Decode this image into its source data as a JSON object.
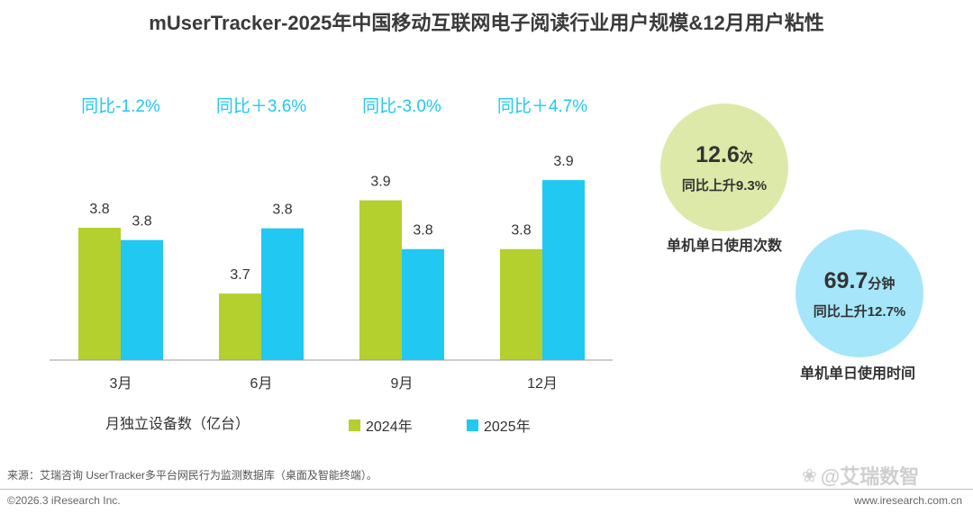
{
  "title": "mUserTracker-2025年中国移动互联网电子阅读行业用户规模&12月用户粘性",
  "chart_data": {
    "type": "bar",
    "categories": [
      "3月",
      "6月",
      "9月",
      "12月"
    ],
    "series": [
      {
        "name": "2024年",
        "values": [
          3.8,
          3.7,
          3.9,
          3.8
        ],
        "color": "#b3d02f"
      },
      {
        "name": "2025年",
        "values": [
          3.8,
          3.8,
          3.8,
          3.9
        ],
        "color": "#20c8f2"
      }
    ],
    "value_labels": [
      [
        "3.8",
        "3.7",
        "3.9",
        "3.8"
      ],
      [
        "3.8",
        "3.8",
        "3.8",
        "3.9"
      ]
    ],
    "bar_heights": [
      [
        0.7,
        0.352,
        0.845,
        0.587
      ],
      [
        0.635,
        0.697,
        0.587,
        0.952
      ]
    ],
    "yoy_labels": [
      "同比-1.2%",
      "同比＋3.6%",
      "同比-3.0%",
      "同比＋4.7%"
    ],
    "yoy_color": "#20c8f2",
    "ylabel": "月独立设备数（亿台）",
    "legend_position": "bottom",
    "grid": false
  },
  "stats": {
    "sessions": {
      "value": "12.6",
      "unit": "次",
      "change": "同比上升9.3%",
      "caption": "单机单日使用次数"
    },
    "duration": {
      "value": "69.7",
      "unit": "分钟",
      "change": "同比上升12.7%",
      "caption": "单机单日使用时间"
    }
  },
  "footer": {
    "source": "来源：艾瑞咨询 UserTracker多平台网民行为监测数据库（桌面及智能终端）。",
    "copyright": "©2026.3 iResearch Inc.",
    "website": "www.iresearch.com.cn",
    "watermark": "@艾瑞数智"
  }
}
